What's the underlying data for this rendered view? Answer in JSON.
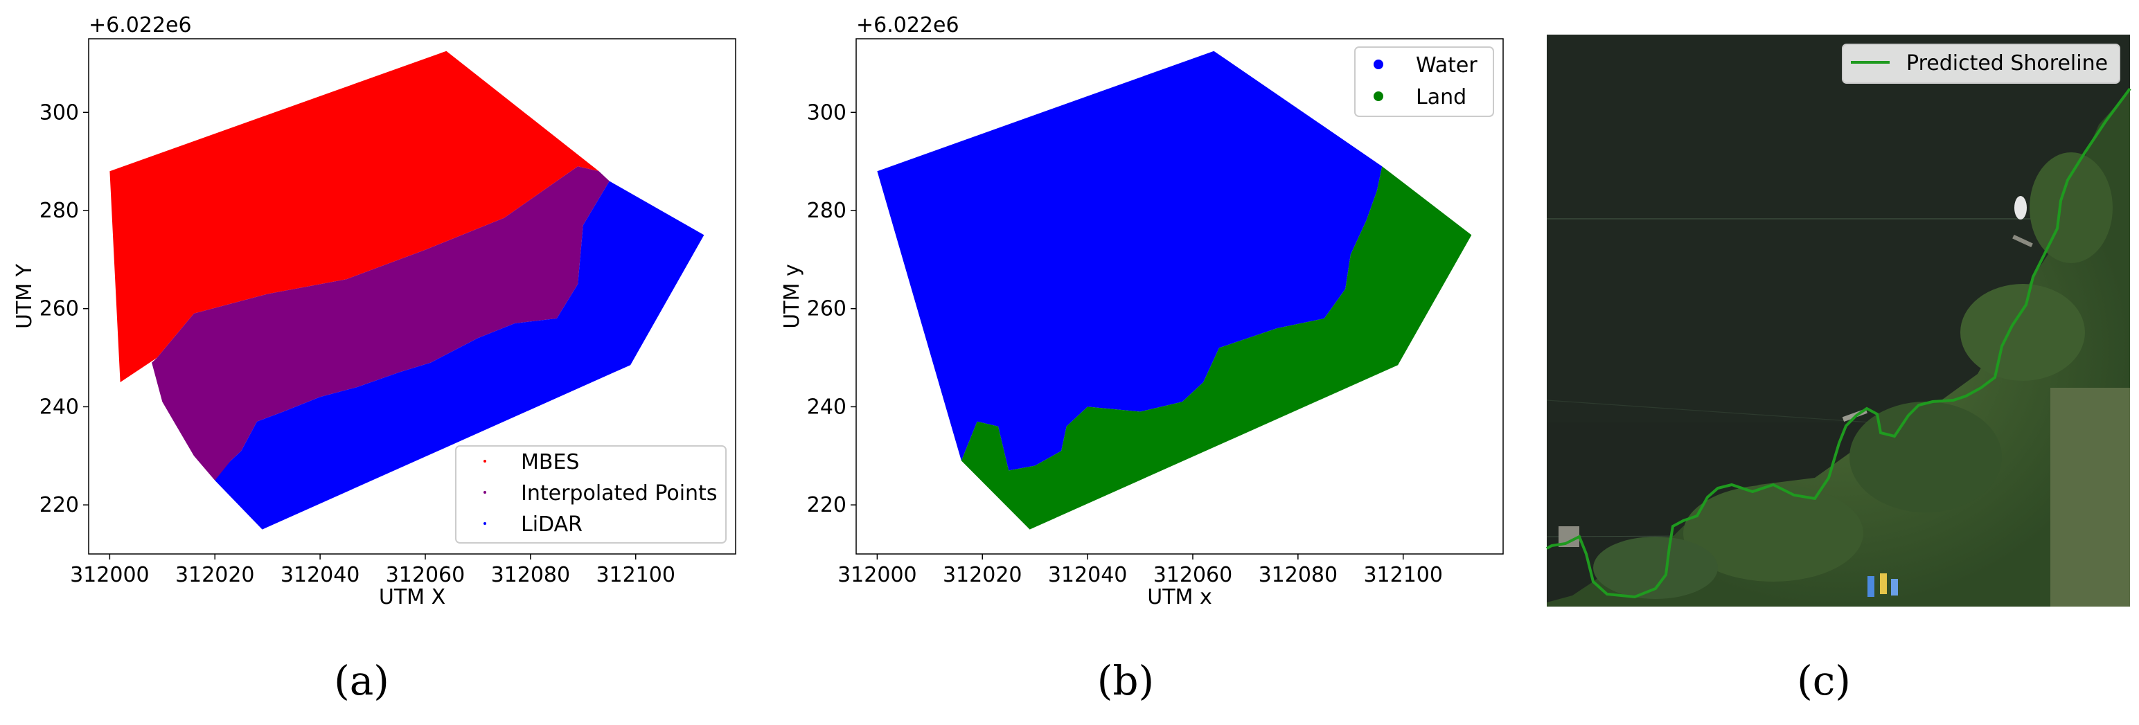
{
  "figure": {
    "panel_letters": [
      "(a)",
      "(b)",
      "(c)"
    ]
  },
  "chart_data": [
    {
      "type": "scatter",
      "panel": "(a)",
      "offset_label": "+6.022e6",
      "xlabel": "UTM X",
      "ylabel": "UTM Y",
      "xlim": [
        311996,
        312119
      ],
      "ylim": [
        210,
        315
      ],
      "xticks": [
        312000,
        312020,
        312040,
        312060,
        312080,
        312100
      ],
      "yticks": [
        220,
        240,
        260,
        280,
        300
      ],
      "legend": {
        "position": "lower-right"
      },
      "colors": {
        "MBES": "#ff0000",
        "Interpolated Points": "#800080",
        "LiDAR": "#0000ff"
      },
      "series": [
        {
          "name": "MBES",
          "color": "#ff0000",
          "region": [
            [
              312000,
              288
            ],
            [
              312064,
              312.5
            ],
            [
              312093,
              288
            ],
            [
              312089,
              289
            ],
            [
              312075,
              278.5
            ],
            [
              312060,
              272
            ],
            [
              312045,
              266
            ],
            [
              312030,
              263
            ],
            [
              312016,
              259
            ],
            [
              312009,
              250
            ],
            [
              312002,
              245
            ]
          ]
        },
        {
          "name": "Interpolated Points",
          "color": "#800080",
          "region": [
            [
              312009,
              250
            ],
            [
              312016,
              259
            ],
            [
              312030,
              263
            ],
            [
              312045,
              266
            ],
            [
              312060,
              272
            ],
            [
              312075,
              278.5
            ],
            [
              312089,
              289
            ],
            [
              312093,
              288
            ],
            [
              312095,
              286
            ],
            [
              312090,
              277
            ],
            [
              312089,
              265
            ],
            [
              312085,
              258
            ],
            [
              312077,
              257
            ],
            [
              312070,
              254
            ],
            [
              312061,
              249
            ],
            [
              312055,
              247
            ],
            [
              312047,
              244
            ],
            [
              312040,
              242
            ],
            [
              312033,
              239
            ],
            [
              312028,
              237
            ],
            [
              312025,
              231
            ],
            [
              312023,
              229
            ],
            [
              312021,
              226
            ],
            [
              312020,
              225
            ],
            [
              312016,
              230
            ],
            [
              312010,
              241
            ],
            [
              312008,
              249
            ]
          ]
        },
        {
          "name": "LiDAR",
          "color": "#0000ff",
          "region": [
            [
              312095,
              286
            ],
            [
              312113,
              275
            ],
            [
              312099,
              248.5
            ],
            [
              312029,
              215
            ],
            [
              312020,
              225
            ],
            [
              312023,
              229
            ],
            [
              312025,
              231
            ],
            [
              312028,
              237
            ],
            [
              312033,
              239
            ],
            [
              312040,
              242
            ],
            [
              312047,
              244
            ],
            [
              312055,
              247
            ],
            [
              312061,
              249
            ],
            [
              312070,
              254
            ],
            [
              312077,
              257
            ],
            [
              312085,
              258
            ],
            [
              312089,
              265
            ],
            [
              312090,
              277
            ]
          ]
        }
      ]
    },
    {
      "type": "scatter",
      "panel": "(b)",
      "offset_label": "+6.022e6",
      "xlabel": "UTM x",
      "ylabel": "UTM y",
      "xlim": [
        311996,
        312119
      ],
      "ylim": [
        210,
        315
      ],
      "xticks": [
        312000,
        312020,
        312040,
        312060,
        312080,
        312100
      ],
      "yticks": [
        220,
        240,
        260,
        280,
        300
      ],
      "legend": {
        "position": "top-right"
      },
      "colors": {
        "Water": "#0000ff",
        "Land": "#008000"
      },
      "series": [
        {
          "name": "Water",
          "color": "#0000ff",
          "region": [
            [
              312000,
              288
            ],
            [
              312064,
              312.5
            ],
            [
              312096,
              289
            ],
            [
              312095,
              284
            ],
            [
              312093,
              278
            ],
            [
              312090,
              271
            ],
            [
              312089,
              264
            ],
            [
              312085,
              258
            ],
            [
              312076,
              256
            ],
            [
              312065,
              252
            ],
            [
              312062,
              245
            ],
            [
              312058,
              241
            ],
            [
              312050,
              239
            ],
            [
              312040,
              240
            ],
            [
              312036,
              236
            ],
            [
              312035,
              231
            ],
            [
              312030,
              228
            ],
            [
              312025,
              227
            ],
            [
              312023,
              236
            ],
            [
              312019,
              237
            ],
            [
              312016,
              229
            ]
          ]
        },
        {
          "name": "Land",
          "color": "#008000",
          "region": [
            [
              312096,
              289
            ],
            [
              312113,
              275
            ],
            [
              312099,
              248.5
            ],
            [
              312029,
              215
            ],
            [
              312016,
              229
            ],
            [
              312019,
              237
            ],
            [
              312023,
              236
            ],
            [
              312025,
              227
            ],
            [
              312030,
              228
            ],
            [
              312035,
              231
            ],
            [
              312036,
              236
            ],
            [
              312040,
              240
            ],
            [
              312050,
              239
            ],
            [
              312058,
              241
            ],
            [
              312062,
              245
            ],
            [
              312065,
              252
            ],
            [
              312076,
              256
            ],
            [
              312085,
              258
            ],
            [
              312089,
              264
            ],
            [
              312090,
              271
            ],
            [
              312093,
              278
            ],
            [
              312095,
              284
            ]
          ]
        }
      ]
    },
    {
      "type": "line",
      "panel": "(c)",
      "legend": {
        "position": "top-right"
      },
      "background": "satellite image",
      "series": [
        {
          "name": "Predicted Shoreline",
          "color": "#228b22"
        }
      ]
    }
  ]
}
